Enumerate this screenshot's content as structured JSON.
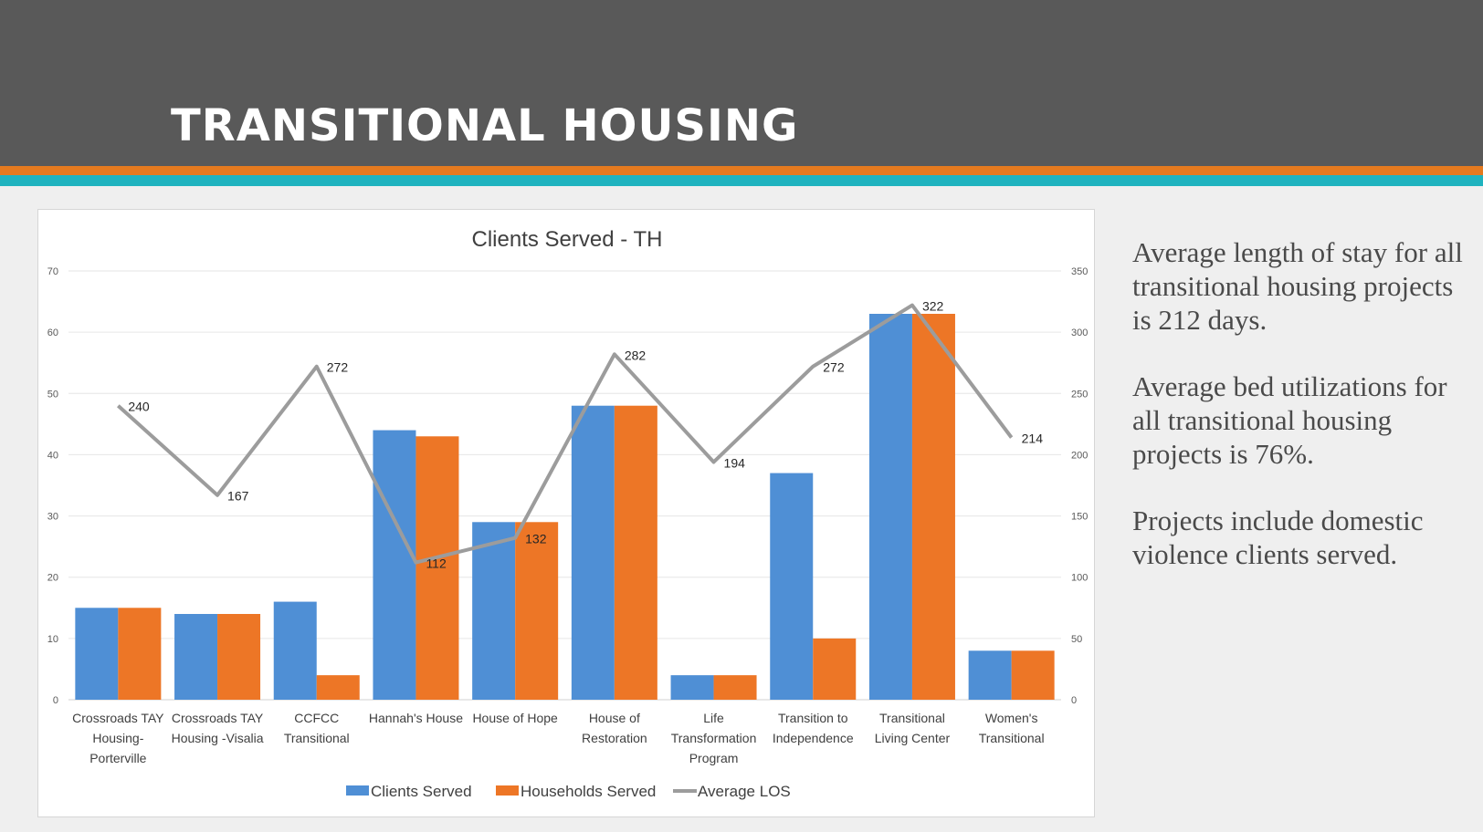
{
  "slide": {
    "title": "TRANSITIONAL HOUSING",
    "paragraphs": [
      "Average length of stay for all transitional housing projects is 212 days.",
      "Average bed utilizations for all transitional housing projects is 76%.",
      "Projects include domestic violence clients served."
    ]
  },
  "chart_data": {
    "type": "bar",
    "title": "Clients Served - TH",
    "categories": [
      [
        "Crossroads TAY",
        "Housing-",
        "Porterville"
      ],
      [
        "Crossroads TAY",
        "Housing -Visalia"
      ],
      [
        "CCFCC",
        "Transitional"
      ],
      [
        "Hannah's House"
      ],
      [
        "House of Hope"
      ],
      [
        "House of",
        "Restoration"
      ],
      [
        "Life",
        "Transformation",
        "Program"
      ],
      [
        "Transition to",
        "Independence"
      ],
      [
        "Transitional",
        "Living Center"
      ],
      [
        "Women's",
        "Transitional"
      ]
    ],
    "series": [
      {
        "name": "Clients Served",
        "kind": "bar",
        "axis": "left",
        "color": "#4f8fd5",
        "values": [
          15,
          14,
          16,
          44,
          29,
          48,
          4,
          37,
          63,
          8
        ]
      },
      {
        "name": "Households Served",
        "kind": "bar",
        "axis": "left",
        "color": "#ed7626",
        "values": [
          15,
          14,
          4,
          43,
          29,
          48,
          4,
          10,
          63,
          8
        ]
      },
      {
        "name": "Average LOS",
        "kind": "line",
        "axis": "right",
        "color": "#9c9c9c",
        "values": [
          240,
          167,
          272,
          112,
          132,
          282,
          194,
          272,
          322,
          214
        ]
      }
    ],
    "y_left": {
      "min": 0,
      "max": 70,
      "ticks": [
        0,
        10,
        20,
        30,
        40,
        50,
        60,
        70
      ]
    },
    "y_right": {
      "min": 0,
      "max": 350,
      "ticks": [
        0,
        50,
        100,
        150,
        200,
        250,
        300,
        350
      ]
    },
    "grid": true,
    "legend": "bottom"
  }
}
